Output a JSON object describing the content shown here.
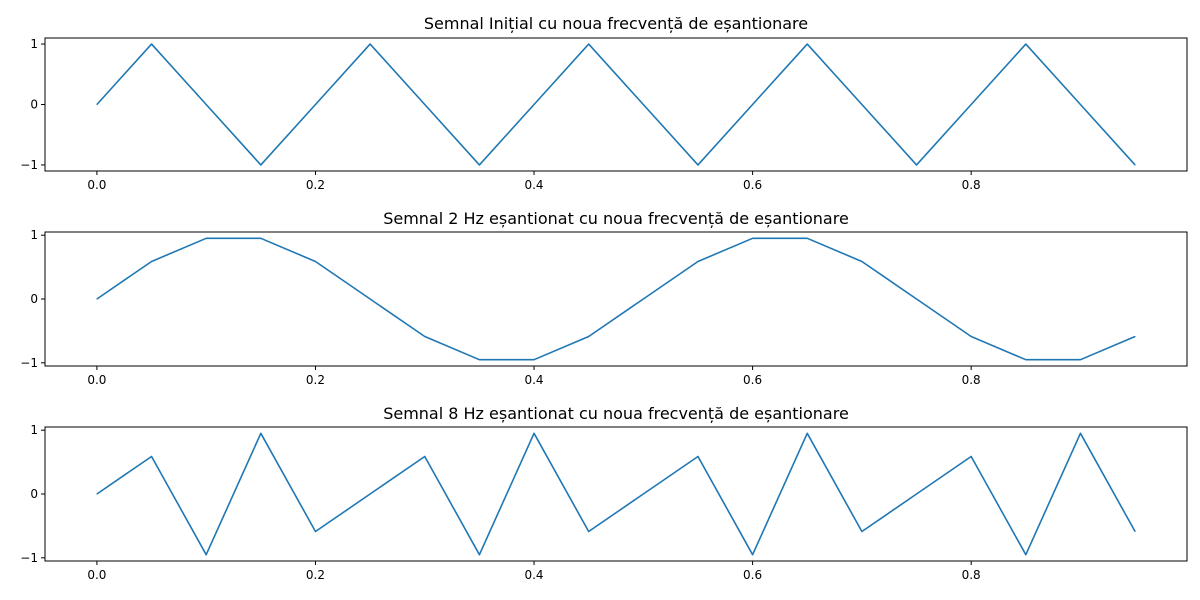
{
  "chart_data": [
    {
      "type": "line",
      "title": "Semnal Inițial cu noua frecvență de eșantionare",
      "xlabel": "",
      "ylabel": "",
      "grid": false,
      "xlim": [
        -0.0475,
        0.9975
      ],
      "ylim": [
        -1.1,
        1.1
      ],
      "x_ticks": [
        0.0,
        0.2,
        0.4,
        0.6,
        0.8
      ],
      "x_tick_labels": [
        "0.0",
        "0.2",
        "0.4",
        "0.6",
        "0.8"
      ],
      "y_ticks": [
        -1,
        0,
        1
      ],
      "y_tick_labels": [
        "−1",
        "0",
        "1"
      ],
      "series": [
        {
          "color": "#1f77b4",
          "x": [
            0.0,
            0.05,
            0.1,
            0.15,
            0.2,
            0.25,
            0.3,
            0.35,
            0.4,
            0.45,
            0.5,
            0.55,
            0.6,
            0.65,
            0.7,
            0.75,
            0.8,
            0.85,
            0.9,
            0.95
          ],
          "y": [
            0,
            1,
            0,
            -1,
            0,
            1,
            0,
            -1,
            0,
            1,
            0,
            -1,
            0,
            1,
            0,
            -1,
            0,
            1,
            0,
            -1
          ]
        }
      ]
    },
    {
      "type": "line",
      "title": "Semnal 2 Hz eșantionat cu noua frecvență de eșantionare",
      "xlabel": "",
      "ylabel": "",
      "grid": false,
      "xlim": [
        -0.0475,
        0.9975
      ],
      "ylim": [
        -1.05,
        1.05
      ],
      "x_ticks": [
        0.0,
        0.2,
        0.4,
        0.6,
        0.8
      ],
      "x_tick_labels": [
        "0.0",
        "0.2",
        "0.4",
        "0.6",
        "0.8"
      ],
      "y_ticks": [
        -1,
        0,
        1
      ],
      "y_tick_labels": [
        "−1",
        "0",
        "1"
      ],
      "series": [
        {
          "color": "#1f77b4",
          "x": [
            0.0,
            0.05,
            0.1,
            0.15,
            0.2,
            0.25,
            0.3,
            0.35,
            0.4,
            0.45,
            0.5,
            0.55,
            0.6,
            0.65,
            0.7,
            0.75,
            0.8,
            0.85,
            0.9,
            0.95
          ],
          "y": [
            0,
            0.588,
            0.951,
            0.951,
            0.588,
            0,
            -0.588,
            -0.951,
            -0.951,
            -0.588,
            0,
            0.588,
            0.951,
            0.951,
            0.588,
            0,
            -0.588,
            -0.951,
            -0.951,
            -0.588
          ]
        }
      ]
    },
    {
      "type": "line",
      "title": "Semnal 8 Hz eșantionat cu noua frecvență de eșantionare",
      "xlabel": "",
      "ylabel": "",
      "grid": false,
      "xlim": [
        -0.0475,
        0.9975
      ],
      "ylim": [
        -1.05,
        1.05
      ],
      "x_ticks": [
        0.0,
        0.2,
        0.4,
        0.6,
        0.8
      ],
      "x_tick_labels": [
        "0.0",
        "0.2",
        "0.4",
        "0.6",
        "0.8"
      ],
      "y_ticks": [
        -1,
        0,
        1
      ],
      "y_tick_labels": [
        "−1",
        "0",
        "1"
      ],
      "series": [
        {
          "color": "#1f77b4",
          "x": [
            0.0,
            0.05,
            0.1,
            0.15,
            0.2,
            0.25,
            0.3,
            0.35,
            0.4,
            0.45,
            0.5,
            0.55,
            0.6,
            0.65,
            0.7,
            0.75,
            0.8,
            0.85,
            0.9,
            0.95
          ],
          "y": [
            0,
            0.588,
            -0.951,
            0.951,
            -0.588,
            0,
            0.588,
            -0.951,
            0.951,
            -0.588,
            0,
            0.588,
            -0.951,
            0.951,
            -0.588,
            0,
            0.588,
            -0.951,
            0.951,
            -0.588
          ]
        }
      ]
    }
  ]
}
